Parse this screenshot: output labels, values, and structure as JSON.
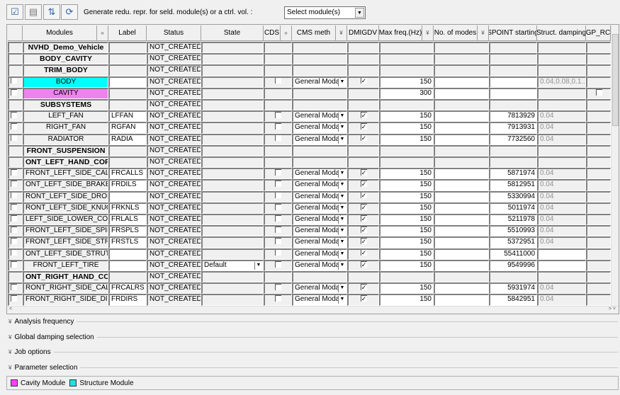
{
  "toolbar": {
    "generate_label": "Generate redu. repr. for seld. module(s) or a ctrl. vol. :",
    "select_value": "Select module(s)"
  },
  "headers": [
    {
      "label": ""
    },
    {
      "label": "Modules"
    },
    {
      "label": "»"
    },
    {
      "label": "Label"
    },
    {
      "label": "Status"
    },
    {
      "label": "State"
    },
    {
      "label": "CDS"
    },
    {
      "label": "»"
    },
    {
      "label": "CMS meth"
    },
    {
      "label": "¥"
    },
    {
      "label": "DMIGDV"
    },
    {
      "label": "Max freq.(Hz)"
    },
    {
      "label": "¥"
    },
    {
      "label": "No. of modes"
    },
    {
      "label": "¥"
    },
    {
      "label": "SPOINT starting"
    },
    {
      "label": "Struct. damping"
    },
    {
      "label": "GP_RC"
    }
  ],
  "colors": {
    "cavity": "#ee82ee",
    "structure": "#00ffff"
  },
  "rows": [
    {
      "type": "group",
      "name": "NVHD_Demo_Vehicle",
      "status": "NOT_CREATED"
    },
    {
      "type": "group",
      "name": "BODY_CAVITY",
      "status": "NOT_CREATED"
    },
    {
      "type": "group",
      "name": "TRIM_BODY",
      "status": "NOT_CREATED"
    },
    {
      "type": "module",
      "name": "BODY",
      "color": "structure",
      "label": "",
      "status": "NOT_CREATED",
      "cds": false,
      "cms": "General Modal",
      "dmig": true,
      "maxfreq": "150",
      "modes": "",
      "spoint": "",
      "damping": "0.04,0.08,0.1..."
    },
    {
      "type": "cavity",
      "name": "CAVITY",
      "color": "cavity",
      "status": "NOT_CREATED",
      "maxfreq": "300",
      "gprc": false
    },
    {
      "type": "group",
      "name": "SUBSYSTEMS",
      "status": "NOT_CREATED"
    },
    {
      "type": "module",
      "name": "LEFT_FAN",
      "label": "LFFAN",
      "status": "NOT_CREATED",
      "cds": false,
      "cms": "General Modal",
      "dmig": true,
      "maxfreq": "150",
      "modes": "",
      "spoint": "7813929",
      "damping": "0.04"
    },
    {
      "type": "module",
      "name": "RIGHT_FAN",
      "label": "RGFAN",
      "status": "NOT_CREATED",
      "cds": false,
      "cms": "General Modal",
      "dmig": true,
      "maxfreq": "150",
      "modes": "",
      "spoint": "7913931",
      "damping": "0.04"
    },
    {
      "type": "module",
      "name": "RADIATOR",
      "label": "RADIA",
      "status": "NOT_CREATED",
      "cds": false,
      "cms": "General Modal",
      "dmig": true,
      "maxfreq": "150",
      "modes": "",
      "spoint": "7732560",
      "damping": "0.04"
    },
    {
      "type": "group",
      "name": "FRONT_SUSPENSION",
      "status": "NOT_CREATED"
    },
    {
      "type": "group",
      "name": "ONT_LEFT_HAND_CORN",
      "status": "NOT_CREATED",
      "left": true
    },
    {
      "type": "module",
      "name": "FRONT_LEFT_SIDE_CALIPEI",
      "label": "FRCALLS",
      "status": "NOT_CREATED",
      "cds": false,
      "cms": "General Modal",
      "dmig": true,
      "maxfreq": "150",
      "modes": "",
      "spoint": "5871974",
      "damping": "0.04",
      "left": true
    },
    {
      "type": "module",
      "name": "ONT_LEFT_SIDE_BRAKE_D",
      "label": "FRDILS",
      "status": "NOT_CREATED",
      "cds": false,
      "cms": "General Modal",
      "dmig": true,
      "maxfreq": "150",
      "modes": "",
      "spoint": "5812951",
      "damping": "0.04",
      "left": true
    },
    {
      "type": "module",
      "name": "RONT_LEFT_SIDE_DROP_LII",
      "label": "",
      "status": "NOT_CREATED",
      "cds": false,
      "cms": "General Modal",
      "dmig": true,
      "maxfreq": "150",
      "modes": "",
      "spoint": "5330994",
      "damping": "0.04",
      "left": true
    },
    {
      "type": "module",
      "name": "RONT_LEFT_SIDE_KNUCKL",
      "label": "FRKNLS",
      "status": "NOT_CREATED",
      "cds": false,
      "cms": "General Modal",
      "dmig": true,
      "maxfreq": "150",
      "modes": "",
      "spoint": "5011974",
      "damping": "0.04",
      "left": true
    },
    {
      "type": "module",
      "name": "LEFT_SIDE_LOWER_CONTF",
      "label": "FRLALS",
      "status": "NOT_CREATED",
      "cds": false,
      "cms": "General Modal",
      "dmig": true,
      "maxfreq": "150",
      "modes": "",
      "spoint": "5211978",
      "damping": "0.04",
      "left": true
    },
    {
      "type": "module",
      "name": "FRONT_LEFT_SIDE_SPINDLI",
      "label": "FRSPLS",
      "status": "NOT_CREATED",
      "cds": false,
      "cms": "General Modal",
      "dmig": true,
      "maxfreq": "150",
      "modes": "",
      "spoint": "5510993",
      "damping": "0.04",
      "left": true
    },
    {
      "type": "module",
      "name": "FRONT_LEFT_SIDE_STRUT",
      "label": "FRSTLS",
      "status": "NOT_CREATED",
      "cds": false,
      "cms": "General Modal",
      "dmig": true,
      "maxfreq": "150",
      "modes": "",
      "spoint": "5372951",
      "damping": "0.04",
      "left": true
    },
    {
      "type": "module",
      "name": "ONT_LEFT_SIDE_STRUT_R/",
      "label": "",
      "status": "NOT_CREATED",
      "cds": false,
      "cms": "General Modal",
      "dmig": true,
      "maxfreq": "150",
      "modes": "",
      "spoint": "55411000",
      "damping": "",
      "dampWhite": true,
      "left": true
    },
    {
      "type": "module",
      "name": "FRONT_LEFT_TIRE",
      "label": "",
      "status": "NOT_CREATED",
      "state": "Default",
      "cds": false,
      "cms": "General Modal",
      "dmig": true,
      "maxfreq": "150",
      "modes": "",
      "spoint": "9549996",
      "damping": "",
      "dampWhite": true
    },
    {
      "type": "group",
      "name": "ONT_RIGHT_HAND_CORI",
      "status": "NOT_CREATED",
      "left": true
    },
    {
      "type": "module",
      "name": "RONT_RIGHT_SIDE_CALIPE",
      "label": "FRCALRS",
      "status": "NOT_CREATED",
      "cds": false,
      "cms": "General Modal",
      "dmig": true,
      "maxfreq": "150",
      "modes": "",
      "spoint": "5931974",
      "damping": "0.04",
      "left": true
    },
    {
      "type": "module",
      "name": "FRONT_RIGHT_SIDE_DISC",
      "label": "FRDIRS",
      "status": "NOT_CREATED",
      "cds": false,
      "cms": "General Modal",
      "dmig": true,
      "maxfreq": "150",
      "modes": "",
      "spoint": "5842951",
      "damping": "0.04",
      "left": true
    }
  ],
  "sections": [
    {
      "label": "Analysis frequency"
    },
    {
      "label": "Global damping selection"
    },
    {
      "label": "Job options"
    },
    {
      "label": "Parameter selection"
    }
  ],
  "legend": {
    "cavity": "Cavity Module",
    "structure": "Structure Module"
  }
}
